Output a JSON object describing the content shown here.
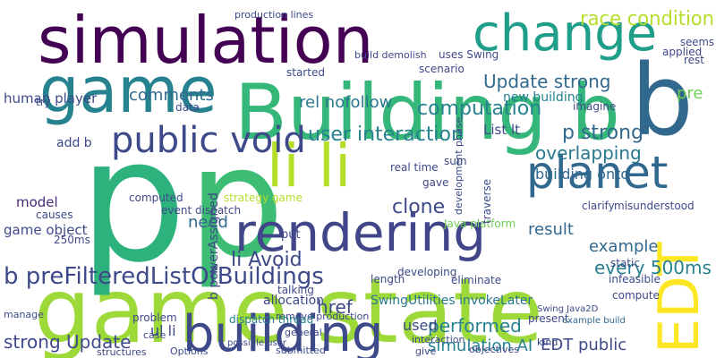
{
  "words": [
    {
      "text": "game state",
      "color": "#9ed93a"
    },
    {
      "text": "simulation",
      "color": "#440154"
    },
    {
      "text": "game",
      "color": "#26828e"
    },
    {
      "text": "Building b",
      "color": "#35b779"
    },
    {
      "text": "change",
      "color": "#1f9e89"
    },
    {
      "text": "p",
      "color": "#2db27d"
    },
    {
      "text": "p",
      "color": "#3dbc74"
    },
    {
      "text": "b",
      "color": "#31688e"
    },
    {
      "text": "li li",
      "color": "#b5de2b"
    },
    {
      "text": "public void",
      "color": "#3e4989"
    },
    {
      "text": "planet",
      "color": "#31688e"
    },
    {
      "text": "rendering",
      "color": "#404688"
    },
    {
      "text": "building",
      "color": "#3e4989"
    },
    {
      "text": "EDT",
      "color": "#fde725"
    },
    {
      "text": "b preFilteredListOfBuildings",
      "color": "#3e4989"
    },
    {
      "text": "computation",
      "color": "#26828e"
    },
    {
      "text": "race condition",
      "color": "#b5de2b"
    },
    {
      "text": "Update strong",
      "color": "#31688e"
    },
    {
      "text": "user interaction",
      "color": "#26828e"
    },
    {
      "text": "p strong",
      "color": "#31688e"
    },
    {
      "text": "overlapping",
      "color": "#2a788e"
    },
    {
      "text": "building onto",
      "color": "#31688e"
    },
    {
      "text": "comments",
      "color": "#31688e"
    },
    {
      "text": "human player",
      "color": "#3e4989"
    },
    {
      "text": "rel nofollow",
      "color": "#2a788e"
    },
    {
      "text": "List lt",
      "color": "#3e4989"
    },
    {
      "text": "clone",
      "color": "#3e4989"
    },
    {
      "text": "model",
      "color": "#482878"
    },
    {
      "text": "need",
      "color": "#31688e"
    },
    {
      "text": "game object",
      "color": "#3e4989"
    },
    {
      "text": "li Avoid",
      "color": "#3e4989"
    },
    {
      "text": "result",
      "color": "#31688e"
    },
    {
      "text": "example",
      "color": "#31688e"
    },
    {
      "text": "every 500ms",
      "color": "#26828e"
    },
    {
      "text": "SwingUtilities invokeLater",
      "color": "#2a788e"
    },
    {
      "text": "href",
      "color": "#3e4989"
    },
    {
      "text": "performed",
      "color": "#26828e"
    },
    {
      "text": "simulation AI",
      "color": "#26828e"
    },
    {
      "text": "EDT public",
      "color": "#3e4989"
    },
    {
      "text": "strong Update",
      "color": "#3e4989"
    },
    {
      "text": "used",
      "color": "#3e4989"
    },
    {
      "text": "new building",
      "color": "#26828e"
    },
    {
      "text": "pre",
      "color": "#6ece58"
    },
    {
      "text": "add b",
      "color": "#3e4989"
    },
    {
      "text": "ul li",
      "color": "#3e4989"
    },
    {
      "text": "allocation",
      "color": "#3e4989"
    },
    {
      "text": "interaction",
      "color": "#3e4989"
    },
    {
      "text": "Options",
      "color": "#3e4989"
    },
    {
      "text": "submitted",
      "color": "#3e4989"
    },
    {
      "text": "remove production",
      "color": "#3e4989"
    },
    {
      "text": "dispatch thread",
      "color": "#26828e"
    },
    {
      "text": "problem",
      "color": "#3e4989"
    },
    {
      "text": "manage",
      "color": "#3e4989"
    },
    {
      "text": "structures",
      "color": "#3e4989"
    },
    {
      "text": "present",
      "color": "#3e4989"
    },
    {
      "text": "compute",
      "color": "#3e4989"
    },
    {
      "text": "infeasible",
      "color": "#3e4989"
    },
    {
      "text": "eliminate",
      "color": "#3e4989"
    },
    {
      "text": "length",
      "color": "#3e4989"
    },
    {
      "text": "talking",
      "color": "#3e4989"
    },
    {
      "text": "example build",
      "color": "#31688e"
    },
    {
      "text": "applied",
      "color": "#3e4989"
    },
    {
      "text": "seems",
      "color": "#3e4989"
    },
    {
      "text": "rest",
      "color": "#3e4989"
    },
    {
      "text": "imagine",
      "color": "#3e4989"
    },
    {
      "text": "sum",
      "color": "#3e4989"
    },
    {
      "text": "real time",
      "color": "#3e4989"
    },
    {
      "text": "gave",
      "color": "#3e4989"
    },
    {
      "text": "Java platform",
      "color": "#6ece58"
    },
    {
      "text": "clarify",
      "color": "#3e4989"
    },
    {
      "text": "misunderstood",
      "color": "#3e4989"
    },
    {
      "text": "put",
      "color": "#3e4989"
    },
    {
      "text": "250ms",
      "color": "#3e4989"
    },
    {
      "text": "causes",
      "color": "#3e4989"
    },
    {
      "text": "data",
      "color": "#3e4989"
    },
    {
      "text": "computed",
      "color": "#3e4989"
    },
    {
      "text": "event dispatch",
      "color": "#3e4989"
    },
    {
      "text": "strategy game",
      "color": "#b5de2b"
    },
    {
      "text": "try",
      "color": "#3e4989"
    },
    {
      "text": "started",
      "color": "#3e4989"
    },
    {
      "text": "scenario",
      "color": "#3e4989"
    },
    {
      "text": "uses Swing",
      "color": "#3e4989"
    },
    {
      "text": "production lines",
      "color": "#3e4989"
    },
    {
      "text": "build demolish",
      "color": "#3e4989"
    },
    {
      "text": "Swing Java2D",
      "color": "#3e4989"
    },
    {
      "text": "kind",
      "color": "#3e4989"
    },
    {
      "text": "objectives",
      "color": "#3e4989"
    },
    {
      "text": "give",
      "color": "#3e4989"
    },
    {
      "text": "general",
      "color": "#3e4989"
    },
    {
      "text": "possible user",
      "color": "#3e4989"
    },
    {
      "text": "case",
      "color": "#3e4989"
    },
    {
      "text": "developing",
      "color": "#3e4989"
    },
    {
      "text": "b powerAssigned",
      "color": "#3e4989"
    },
    {
      "text": "development phase",
      "color": "#3e4989"
    },
    {
      "text": "static",
      "color": "#3e4989"
    },
    {
      "text": "traverse",
      "color": "#3e4989"
    }
  ]
}
